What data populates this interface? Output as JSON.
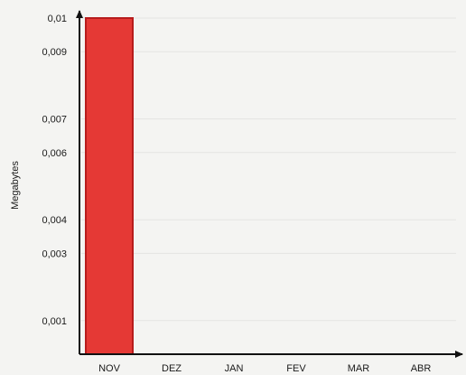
{
  "chart_data": {
    "type": "bar",
    "title": "",
    "xlabel": "",
    "ylabel": "Megabytes",
    "categories": [
      "NOV",
      "DEZ",
      "JAN",
      "FEV",
      "MAR",
      "ABR"
    ],
    "values": [
      0.01,
      0,
      0,
      0,
      0,
      0
    ],
    "y_ticks": [
      "0,001",
      "0,003",
      "0,004",
      "0,006",
      "0,007",
      "0,009",
      "0,01"
    ],
    "ylim": [
      0,
      0.01
    ],
    "grid": true,
    "legend": "none",
    "colors": {
      "bar_fill": "#e53935",
      "bar_stroke": "#b71c1c",
      "axis": "#111111",
      "grid": "#e4e4e2"
    }
  }
}
